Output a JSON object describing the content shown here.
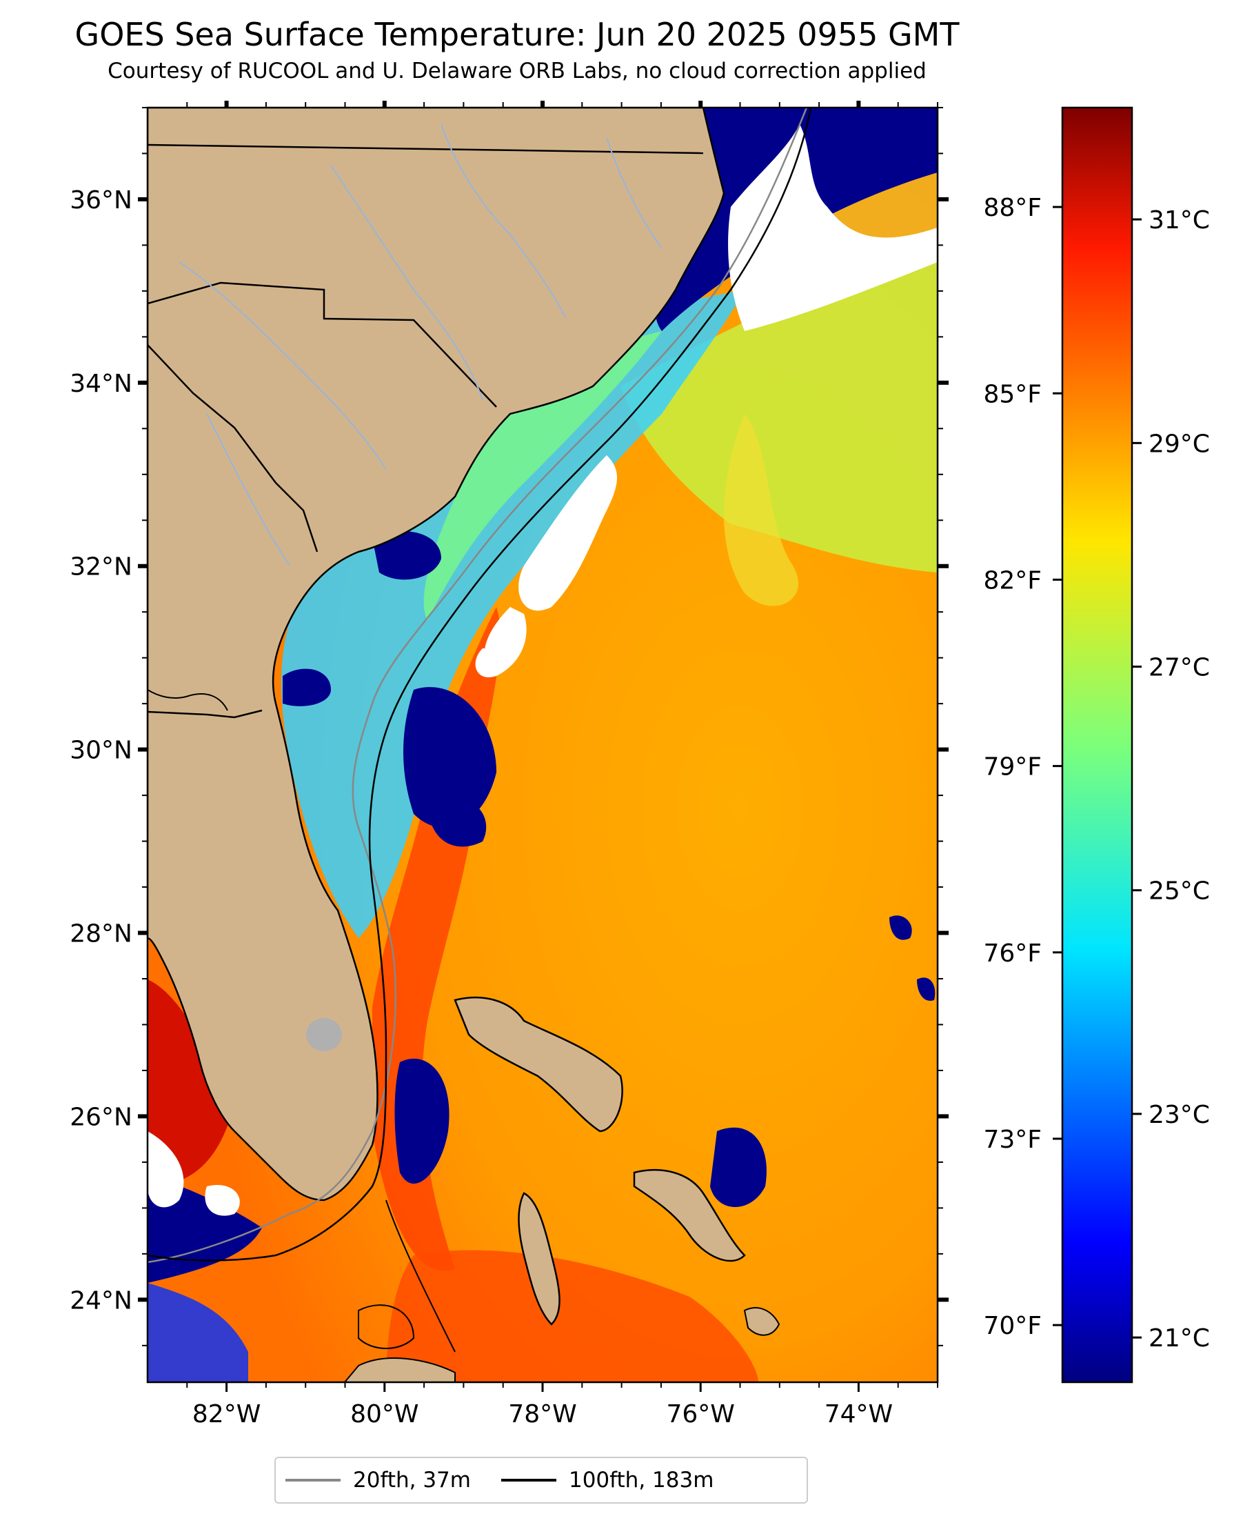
{
  "title": "GOES Sea Surface Temperature: Jun 20 2025 0955 GMT",
  "subtitle": "Courtesy of RUCOOL and U. Delaware ORB Labs, no cloud correction applied",
  "map": {
    "lon_ticks": [
      "82°W",
      "80°W",
      "78°W",
      "76°W",
      "74°W"
    ],
    "lat_ticks": [
      "36°N",
      "34°N",
      "32°N",
      "30°N",
      "28°N",
      "26°N",
      "24°N"
    ],
    "lon_range": [
      -83.0,
      -73.0
    ],
    "lat_range": [
      23.1,
      37.0
    ],
    "colors": {
      "land": "#d2b48c",
      "cloud": "#ffffff",
      "cold_mask": "#00008b",
      "rivers": "#9ab4d8",
      "borders": "#000000"
    }
  },
  "colorbar": {
    "celsius_ticks": [
      "31°C",
      "29°C",
      "27°C",
      "25°C",
      "23°C",
      "21°C"
    ],
    "fahrenheit_ticks": [
      "88°F",
      "85°F",
      "82°F",
      "79°F",
      "76°F",
      "73°F",
      "70°F"
    ],
    "colormap": "jet"
  },
  "legend": [
    {
      "label": "20fth, 37m",
      "color": "#888888"
    },
    {
      "label": "100fth, 183m",
      "color": "#000000"
    }
  ]
}
